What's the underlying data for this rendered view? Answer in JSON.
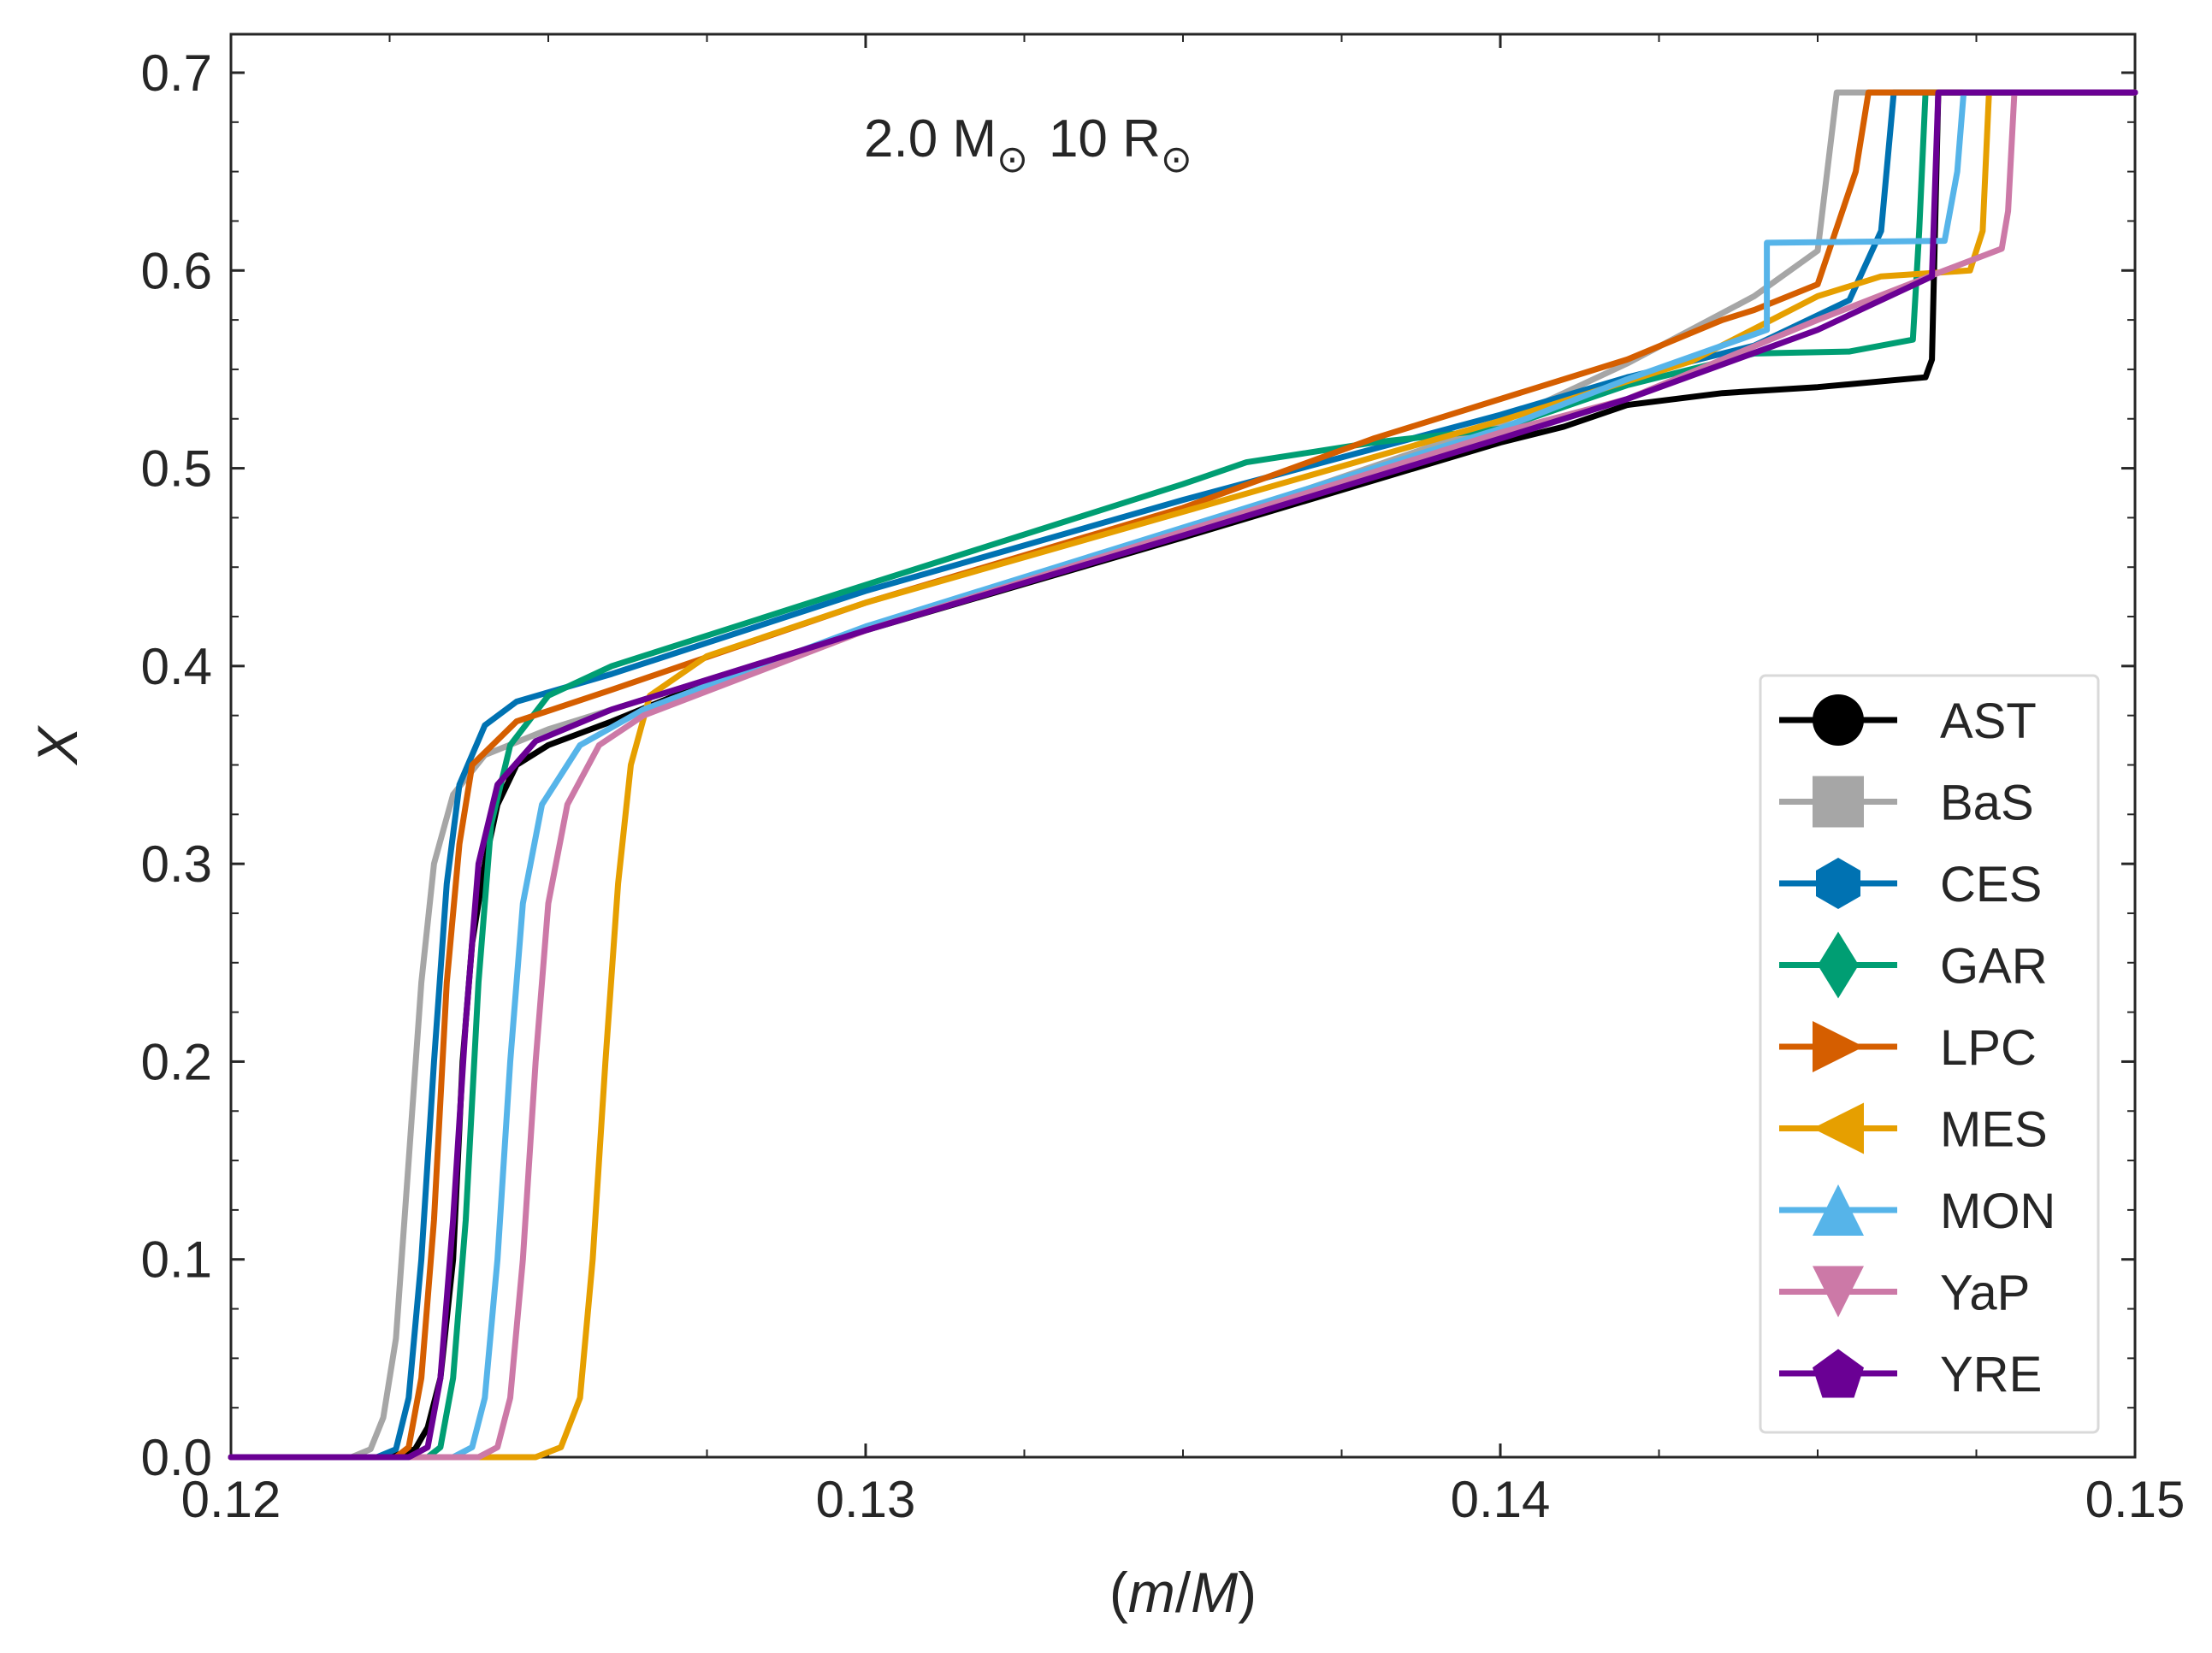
{
  "chart_data": {
    "type": "line",
    "annotation": {
      "mass": "2.0 M",
      "radius": "10 R",
      "sun_symbol": "⊙"
    },
    "xlabel_parts": [
      "(",
      "m",
      "/",
      "M",
      ")"
    ],
    "ylabel": "X",
    "xlim": [
      0.12,
      0.15
    ],
    "ylim": [
      0.0,
      0.7
    ],
    "xticks": [
      0.12,
      0.13,
      0.14,
      0.15
    ],
    "xtick_labels": [
      "0.12",
      "0.13",
      "0.14",
      "0.15"
    ],
    "yticks": [
      0.0,
      0.1,
      0.2,
      0.3,
      0.4,
      0.5,
      0.6,
      0.7
    ],
    "ytick_labels": [
      "0.0",
      "0.1",
      "0.2",
      "0.3",
      "0.4",
      "0.5",
      "0.6",
      "0.7"
    ],
    "legend_position": "lower-right",
    "series": [
      {
        "name": "AST",
        "color": "#000000",
        "marker": "circle",
        "points": [
          [
            0.12,
            0
          ],
          [
            0.1225,
            0
          ],
          [
            0.1229,
            0.004
          ],
          [
            0.1231,
            0.015
          ],
          [
            0.1233,
            0.04
          ],
          [
            0.1235,
            0.1
          ],
          [
            0.12365,
            0.2
          ],
          [
            0.1238,
            0.26
          ],
          [
            0.124,
            0.3
          ],
          [
            0.1242,
            0.33
          ],
          [
            0.1245,
            0.35
          ],
          [
            0.125,
            0.36
          ],
          [
            0.126,
            0.372
          ],
          [
            0.127,
            0.385
          ],
          [
            0.13,
            0.418
          ],
          [
            0.135,
            0.465
          ],
          [
            0.14,
            0.513
          ],
          [
            0.141,
            0.521
          ],
          [
            0.142,
            0.532
          ],
          [
            0.1435,
            0.538
          ],
          [
            0.145,
            0.541
          ],
          [
            0.1467,
            0.546
          ],
          [
            0.1468,
            0.555
          ],
          [
            0.1469,
            0.69
          ],
          [
            0.15,
            0.69
          ]
        ]
      },
      {
        "name": "BaS",
        "color": "#a6a6a6",
        "marker": "square",
        "points": [
          [
            0.12,
            0
          ],
          [
            0.1219,
            0
          ],
          [
            0.1222,
            0.004
          ],
          [
            0.1224,
            0.02
          ],
          [
            0.1226,
            0.06
          ],
          [
            0.1228,
            0.15
          ],
          [
            0.123,
            0.24
          ],
          [
            0.1232,
            0.3
          ],
          [
            0.1235,
            0.335
          ],
          [
            0.124,
            0.355
          ],
          [
            0.125,
            0.368
          ],
          [
            0.126,
            0.378
          ],
          [
            0.128,
            0.398
          ],
          [
            0.13,
            0.418
          ],
          [
            0.135,
            0.468
          ],
          [
            0.14,
            0.523
          ],
          [
            0.142,
            0.553
          ],
          [
            0.144,
            0.587
          ],
          [
            0.145,
            0.61
          ],
          [
            0.1453,
            0.69
          ],
          [
            0.15,
            0.69
          ]
        ]
      },
      {
        "name": "CES",
        "color": "#0072b2",
        "marker": "hexagon",
        "points": [
          [
            0.12,
            0
          ],
          [
            0.1223,
            0
          ],
          [
            0.1226,
            0.004
          ],
          [
            0.1228,
            0.03
          ],
          [
            0.123,
            0.1
          ],
          [
            0.1232,
            0.2
          ],
          [
            0.1234,
            0.29
          ],
          [
            0.1236,
            0.34
          ],
          [
            0.124,
            0.37
          ],
          [
            0.1245,
            0.382
          ],
          [
            0.126,
            0.396
          ],
          [
            0.13,
            0.438
          ],
          [
            0.135,
            0.484
          ],
          [
            0.14,
            0.527
          ],
          [
            0.142,
            0.546
          ],
          [
            0.144,
            0.562
          ],
          [
            0.1455,
            0.585
          ],
          [
            0.146,
            0.62
          ],
          [
            0.1462,
            0.69
          ],
          [
            0.15,
            0.69
          ]
        ]
      },
      {
        "name": "GAR",
        "color": "#009e73",
        "marker": "diamond",
        "points": [
          [
            0.12,
            0
          ],
          [
            0.1231,
            0
          ],
          [
            0.1233,
            0.005
          ],
          [
            0.1235,
            0.04
          ],
          [
            0.1237,
            0.12
          ],
          [
            0.1239,
            0.24
          ],
          [
            0.1241,
            0.32
          ],
          [
            0.1244,
            0.36
          ],
          [
            0.125,
            0.385
          ],
          [
            0.126,
            0.4
          ],
          [
            0.13,
            0.441
          ],
          [
            0.135,
            0.492
          ],
          [
            0.136,
            0.503
          ],
          [
            0.137,
            0.508
          ],
          [
            0.138,
            0.513
          ],
          [
            0.14,
            0.52
          ],
          [
            0.142,
            0.542
          ],
          [
            0.144,
            0.558
          ],
          [
            0.1455,
            0.559
          ],
          [
            0.1465,
            0.565
          ],
          [
            0.1466,
            0.62
          ],
          [
            0.1467,
            0.69
          ],
          [
            0.15,
            0.69
          ]
        ]
      },
      {
        "name": "LPC",
        "color": "#d55e00",
        "marker": "triangle-right",
        "points": [
          [
            0.12,
            0
          ],
          [
            0.1226,
            0
          ],
          [
            0.1228,
            0.005
          ],
          [
            0.123,
            0.04
          ],
          [
            0.1232,
            0.12
          ],
          [
            0.1234,
            0.24
          ],
          [
            0.1236,
            0.31
          ],
          [
            0.1238,
            0.35
          ],
          [
            0.1245,
            0.372
          ],
          [
            0.126,
            0.388
          ],
          [
            0.13,
            0.432
          ],
          [
            0.135,
            0.48
          ],
          [
            0.138,
            0.515
          ],
          [
            0.14,
            0.535
          ],
          [
            0.142,
            0.555
          ],
          [
            0.1435,
            0.575
          ],
          [
            0.144,
            0.58
          ],
          [
            0.145,
            0.593
          ],
          [
            0.1456,
            0.65
          ],
          [
            0.1458,
            0.69
          ],
          [
            0.15,
            0.69
          ]
        ]
      },
      {
        "name": "MES",
        "color": "#e69f00",
        "marker": "triangle-left",
        "points": [
          [
            0.12,
            0
          ],
          [
            0.1248,
            0
          ],
          [
            0.1252,
            0.005
          ],
          [
            0.1255,
            0.03
          ],
          [
            0.1257,
            0.1
          ],
          [
            0.1259,
            0.2
          ],
          [
            0.1261,
            0.29
          ],
          [
            0.1263,
            0.35
          ],
          [
            0.1266,
            0.385
          ],
          [
            0.1275,
            0.405
          ],
          [
            0.13,
            0.432
          ],
          [
            0.135,
            0.478
          ],
          [
            0.14,
            0.524
          ],
          [
            0.143,
            0.554
          ],
          [
            0.145,
            0.587
          ],
          [
            0.146,
            0.597
          ],
          [
            0.1474,
            0.6
          ],
          [
            0.1476,
            0.62
          ],
          [
            0.1477,
            0.69
          ],
          [
            0.15,
            0.69
          ]
        ]
      },
      {
        "name": "MON",
        "color": "#56b4e9",
        "marker": "triangle-up",
        "points": [
          [
            0.12,
            0
          ],
          [
            0.1235,
            0
          ],
          [
            0.1238,
            0.005
          ],
          [
            0.124,
            0.03
          ],
          [
            0.1242,
            0.1
          ],
          [
            0.1244,
            0.2
          ],
          [
            0.1246,
            0.28
          ],
          [
            0.1249,
            0.33
          ],
          [
            0.1255,
            0.36
          ],
          [
            0.1265,
            0.378
          ],
          [
            0.13,
            0.42
          ],
          [
            0.135,
            0.47
          ],
          [
            0.14,
            0.52
          ],
          [
            0.142,
            0.545
          ],
          [
            0.1442,
            0.57
          ],
          [
            0.1442,
            0.614
          ],
          [
            0.147,
            0.615
          ],
          [
            0.1472,
            0.65
          ],
          [
            0.1473,
            0.69
          ],
          [
            0.15,
            0.69
          ]
        ]
      },
      {
        "name": "YaP",
        "color": "#cc79a7",
        "marker": "triangle-down",
        "points": [
          [
            0.12,
            0
          ],
          [
            0.1239,
            0
          ],
          [
            0.1242,
            0.005
          ],
          [
            0.1244,
            0.03
          ],
          [
            0.1246,
            0.1
          ],
          [
            0.1248,
            0.2
          ],
          [
            0.125,
            0.28
          ],
          [
            0.1253,
            0.33
          ],
          [
            0.1258,
            0.36
          ],
          [
            0.1265,
            0.375
          ],
          [
            0.13,
            0.418
          ],
          [
            0.135,
            0.468
          ],
          [
            0.14,
            0.518
          ],
          [
            0.142,
            0.535
          ],
          [
            0.145,
            0.575
          ],
          [
            0.147,
            0.6
          ],
          [
            0.1479,
            0.611
          ],
          [
            0.148,
            0.63
          ],
          [
            0.1481,
            0.69
          ],
          [
            0.15,
            0.69
          ]
        ]
      },
      {
        "name": "YRE",
        "color": "#6a0094",
        "marker": "pentagon",
        "points": [
          [
            0.12,
            0
          ],
          [
            0.1228,
            0
          ],
          [
            0.1231,
            0.005
          ],
          [
            0.1233,
            0.04
          ],
          [
            0.1235,
            0.12
          ],
          [
            0.1237,
            0.22
          ],
          [
            0.1239,
            0.3
          ],
          [
            0.1242,
            0.34
          ],
          [
            0.1248,
            0.362
          ],
          [
            0.126,
            0.378
          ],
          [
            0.13,
            0.418
          ],
          [
            0.135,
            0.466
          ],
          [
            0.14,
            0.515
          ],
          [
            0.142,
            0.535
          ],
          [
            0.145,
            0.57
          ],
          [
            0.1468,
            0.597
          ],
          [
            0.1469,
            0.69
          ],
          [
            0.15,
            0.69
          ]
        ]
      }
    ]
  }
}
